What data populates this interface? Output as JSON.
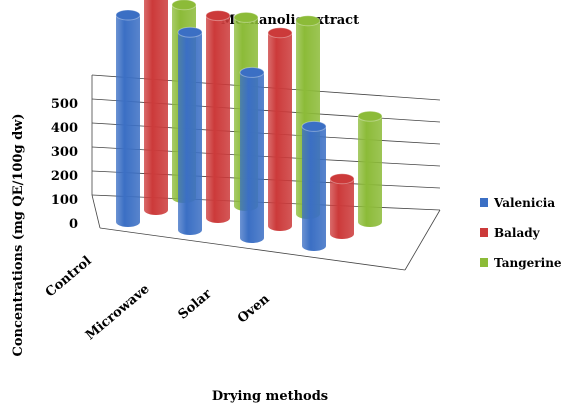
{
  "chart_data": {
    "type": "bar",
    "title": "Methanolic extract",
    "ylabel": "Concentrations (mg QE/100g dw)",
    "xlabel": "Drying methods",
    "categories": [
      "Control",
      "Microwave",
      "Solar",
      "Oven"
    ],
    "series": [
      {
        "name": "Valenicia",
        "values": [
          450,
          430,
          360,
          260
        ],
        "color": "#3b6fc4"
      },
      {
        "name": "Balady",
        "values": [
          480,
          440,
          420,
          120
        ],
        "color": "#cc3a3a"
      },
      {
        "name": "Tangerine",
        "values": [
          420,
          410,
          420,
          230
        ],
        "color": "#8cbb38"
      }
    ],
    "yticks": [
      0,
      100,
      200,
      300,
      400,
      500
    ],
    "ylim": [
      0,
      500
    ],
    "legend_position": "right",
    "grid": true,
    "style": "3d-cylinder"
  }
}
